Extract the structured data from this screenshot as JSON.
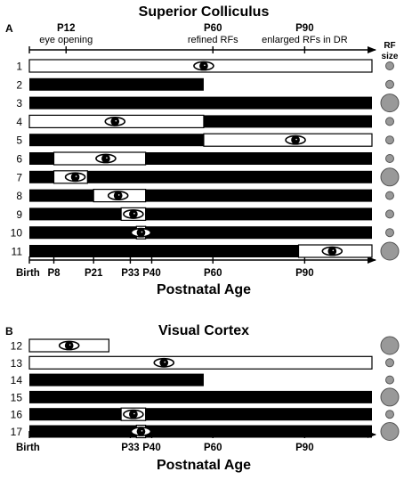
{
  "panelA": {
    "label": "A",
    "title": "Superior Colliculus",
    "annotations": [
      {
        "day": 12,
        "line1": "P12",
        "line2": "eye opening"
      },
      {
        "day": 60,
        "line1": "P60",
        "line2": "refined RFs"
      },
      {
        "day": 90,
        "line1": "P90",
        "line2": "enlarged RFs in DR"
      }
    ],
    "rf_header": [
      "RF",
      "size"
    ],
    "axis_ticks": [
      {
        "day": 0,
        "label": "Birth"
      },
      {
        "day": 8,
        "label": "P8"
      },
      {
        "day": 21,
        "label": "P21"
      },
      {
        "day": 33,
        "label": "P33"
      },
      {
        "day": 40,
        "label": "P40"
      },
      {
        "day": 60,
        "label": "P60"
      },
      {
        "day": 90,
        "label": "P90"
      }
    ],
    "axis_label": "Postnatal Age",
    "rows": [
      {
        "id": "1",
        "light": [
          [
            0,
            112
          ]
        ],
        "eye": 57,
        "rf": "small"
      },
      {
        "id": "2",
        "light": [],
        "end": 57,
        "rf": "small"
      },
      {
        "id": "3",
        "light": [],
        "rf": "large"
      },
      {
        "id": "4",
        "light": [
          [
            0,
            57
          ]
        ],
        "eye": 28,
        "rf": "small"
      },
      {
        "id": "5",
        "light": [
          [
            57,
            112
          ]
        ],
        "eye": 87,
        "rf": "small"
      },
      {
        "id": "6",
        "light": [
          [
            8,
            38
          ]
        ],
        "eye": 25,
        "rf": "small"
      },
      {
        "id": "7",
        "light": [
          [
            8,
            19
          ]
        ],
        "eye": 15,
        "rf": "large"
      },
      {
        "id": "8",
        "light": [
          [
            21,
            38
          ]
        ],
        "eye": 29,
        "rf": "small"
      },
      {
        "id": "9",
        "light": [
          [
            30,
            38
          ]
        ],
        "eye": 34,
        "rf": "small"
      },
      {
        "id": "10",
        "light": [
          [
            35,
            38
          ]
        ],
        "eye": 36.5,
        "rf": "small"
      },
      {
        "id": "11",
        "light": [
          [
            88,
            112
          ]
        ],
        "eye": 99,
        "rf": "large"
      }
    ]
  },
  "panelB": {
    "label": "B",
    "title": "Visual Cortex",
    "axis_ticks": [
      {
        "day": 0,
        "label": "Birth"
      },
      {
        "day": 33,
        "label": "P33"
      },
      {
        "day": 40,
        "label": "P40"
      },
      {
        "day": 60,
        "label": "P60"
      },
      {
        "day": 90,
        "label": "P90"
      }
    ],
    "axis_label": "Postnatal Age",
    "rows": [
      {
        "id": "12",
        "light": [
          [
            0,
            26
          ]
        ],
        "end": 26,
        "eye": 13,
        "rf": "large"
      },
      {
        "id": "13",
        "light": [
          [
            0,
            112
          ]
        ],
        "eye": 44,
        "rf": "small"
      },
      {
        "id": "14",
        "light": [],
        "end": 57,
        "rf": "small"
      },
      {
        "id": "15",
        "light": [],
        "rf": "large"
      },
      {
        "id": "16",
        "light": [
          [
            30,
            38
          ]
        ],
        "eye": 34,
        "rf": "small"
      },
      {
        "id": "17",
        "light": [
          [
            35,
            38
          ]
        ],
        "eye": 36.5,
        "rf": "large"
      }
    ]
  }
}
